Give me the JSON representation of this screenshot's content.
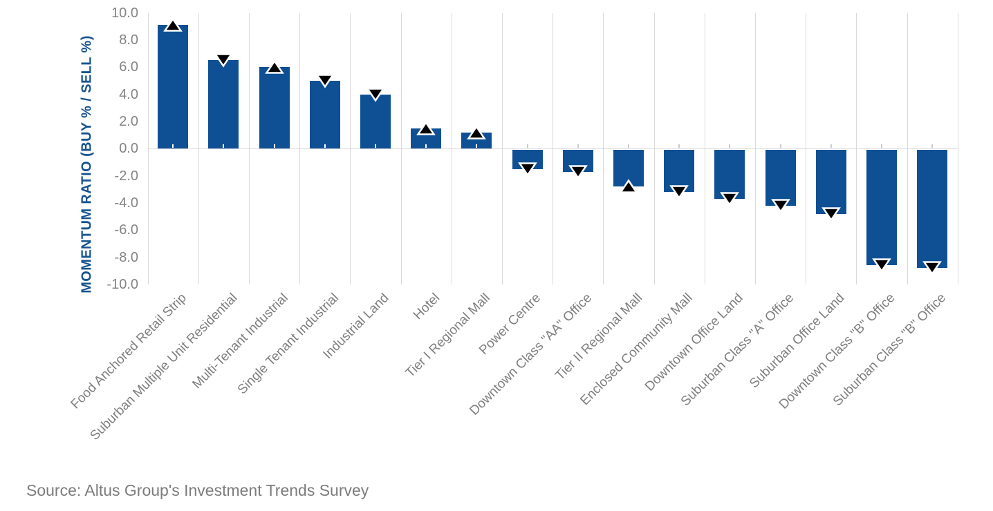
{
  "chart_data": {
    "type": "bar",
    "title": "",
    "ylabel": "MOMENTUM RATIO (BUY % / SELL %)",
    "xlabel": "",
    "ylim": [
      -10,
      10
    ],
    "ytick_step": 2,
    "y_tick_labels": [
      "10.0",
      "8.0",
      "6.0",
      "4.0",
      "2.0",
      "0.0",
      "-2.0",
      "-4.0",
      "-6.0",
      "-8.0",
      "-10.0"
    ],
    "grid": "vertical-only",
    "legend": "none",
    "categories": [
      "Food Anchored Retail Strip",
      "Suburban Multiple Unit Residential",
      "Multi-Tenant Industrial",
      "Single Tenant Industrial",
      "Industrial Land",
      "Hotel",
      "Tier I Regional Mall",
      "Power Centre",
      "Downtown Class \"AA\" Office",
      "Tier II Regional Mall",
      "Enclosed Community Mall",
      "Downtown Office Land",
      "Suburban Class \"A\" Office",
      "Suburban Office Land",
      "Downtown Class \"B\" Office",
      "Suburban Class \"B\" Office"
    ],
    "values": [
      9.1,
      6.5,
      6.0,
      5.0,
      4.0,
      1.5,
      1.2,
      -1.5,
      -1.7,
      -2.8,
      -3.2,
      -3.7,
      -4.2,
      -4.8,
      -8.6,
      -8.8
    ],
    "markers": [
      "up",
      "down",
      "up",
      "down",
      "down",
      "up",
      "up",
      "down",
      "down",
      "up",
      "down",
      "down",
      "down",
      "down",
      "down",
      "down"
    ],
    "source_note": "Source: Altus Group's Investment Trends Survey",
    "colors": {
      "bar-color": "#0f5094",
      "ylabel-color": "#17538f",
      "tick-color": "#848484",
      "cat-color": "#7f7f7f",
      "source-color": "#7c7c7c",
      "grid-color": "#d9d9d9",
      "marker-fill": "#000000",
      "marker-outline": "#ffffff",
      "tick-on-bar": "#ffffff",
      "tick-off-bar": "#c9c9c9"
    }
  }
}
